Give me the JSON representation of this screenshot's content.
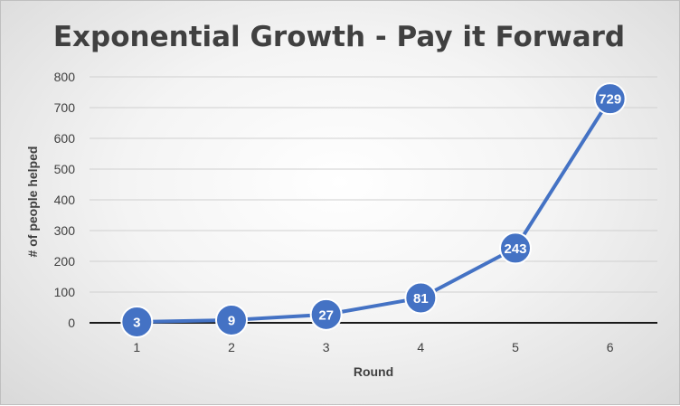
{
  "chart_data": {
    "type": "line",
    "title": "Exponential Growth - Pay it Forward",
    "xlabel": "Round",
    "ylabel": "# of people helped",
    "categories": [
      "1",
      "2",
      "3",
      "4",
      "5",
      "6"
    ],
    "values": [
      3,
      9,
      27,
      81,
      243,
      729
    ],
    "data_labels": [
      "3",
      "9",
      "27",
      "81",
      "243",
      "729"
    ],
    "ylim": [
      0,
      800
    ],
    "yticks": [
      "0",
      "100",
      "200",
      "300",
      "400",
      "500",
      "600",
      "700",
      "800"
    ],
    "grid": true,
    "legend": "none",
    "colors": {
      "series": "#4472c4",
      "grid": "#d0d0d0",
      "axis": "#1a1a1a",
      "text": "#404040"
    }
  }
}
